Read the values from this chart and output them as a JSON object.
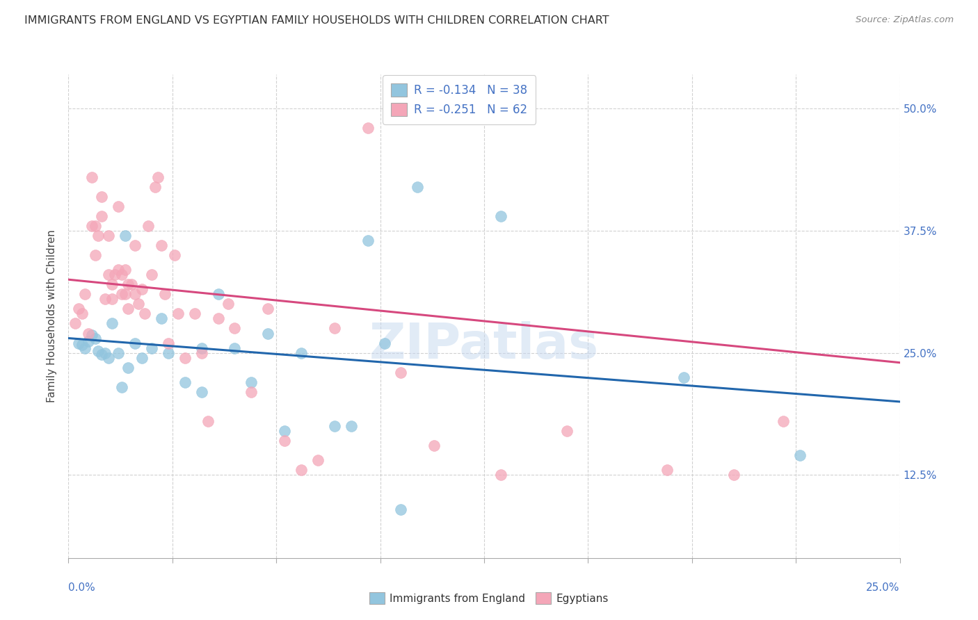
{
  "title": "IMMIGRANTS FROM ENGLAND VS EGYPTIAN FAMILY HOUSEHOLDS WITH CHILDREN CORRELATION CHART",
  "source": "Source: ZipAtlas.com",
  "ylabel": "Family Households with Children",
  "ytick_vals": [
    0.125,
    0.25,
    0.375,
    0.5
  ],
  "ytick_labels": [
    "12.5%",
    "25.0%",
    "37.5%",
    "50.0%"
  ],
  "xlim": [
    0.0,
    0.25
  ],
  "ylim": [
    0.04,
    0.535
  ],
  "label1": "Immigrants from England",
  "label2": "Egyptians",
  "blue_color": "#92c5de",
  "pink_color": "#f4a6b8",
  "line_blue": "#2166ac",
  "line_pink": "#d6487e",
  "background": "#ffffff",
  "grid_color": "#cccccc",
  "watermark_color": "#c5d8ef",
  "blue_x": [
    0.003,
    0.004,
    0.005,
    0.006,
    0.007,
    0.008,
    0.009,
    0.01,
    0.011,
    0.012,
    0.013,
    0.015,
    0.016,
    0.017,
    0.018,
    0.02,
    0.022,
    0.025,
    0.028,
    0.03,
    0.035,
    0.04,
    0.04,
    0.045,
    0.05,
    0.055,
    0.06,
    0.065,
    0.07,
    0.08,
    0.085,
    0.09,
    0.095,
    0.1,
    0.105,
    0.13,
    0.185,
    0.22
  ],
  "blue_y": [
    0.26,
    0.258,
    0.255,
    0.262,
    0.268,
    0.265,
    0.252,
    0.248,
    0.25,
    0.245,
    0.28,
    0.25,
    0.215,
    0.37,
    0.235,
    0.26,
    0.245,
    0.255,
    0.285,
    0.25,
    0.22,
    0.255,
    0.21,
    0.31,
    0.255,
    0.22,
    0.27,
    0.17,
    0.25,
    0.175,
    0.175,
    0.365,
    0.26,
    0.09,
    0.42,
    0.39,
    0.225,
    0.145
  ],
  "pink_x": [
    0.002,
    0.003,
    0.004,
    0.005,
    0.006,
    0.007,
    0.007,
    0.008,
    0.008,
    0.009,
    0.01,
    0.01,
    0.011,
    0.012,
    0.012,
    0.013,
    0.013,
    0.014,
    0.015,
    0.015,
    0.016,
    0.016,
    0.017,
    0.017,
    0.018,
    0.018,
    0.019,
    0.02,
    0.02,
    0.021,
    0.022,
    0.023,
    0.024,
    0.025,
    0.026,
    0.027,
    0.028,
    0.029,
    0.03,
    0.032,
    0.033,
    0.035,
    0.038,
    0.04,
    0.042,
    0.045,
    0.048,
    0.05,
    0.055,
    0.06,
    0.065,
    0.07,
    0.075,
    0.08,
    0.09,
    0.1,
    0.11,
    0.13,
    0.15,
    0.18,
    0.2,
    0.215
  ],
  "pink_y": [
    0.28,
    0.295,
    0.29,
    0.31,
    0.27,
    0.43,
    0.38,
    0.38,
    0.35,
    0.37,
    0.39,
    0.41,
    0.305,
    0.33,
    0.37,
    0.32,
    0.305,
    0.33,
    0.4,
    0.335,
    0.31,
    0.33,
    0.31,
    0.335,
    0.295,
    0.32,
    0.32,
    0.31,
    0.36,
    0.3,
    0.315,
    0.29,
    0.38,
    0.33,
    0.42,
    0.43,
    0.36,
    0.31,
    0.26,
    0.35,
    0.29,
    0.245,
    0.29,
    0.25,
    0.18,
    0.285,
    0.3,
    0.275,
    0.21,
    0.295,
    0.16,
    0.13,
    0.14,
    0.275,
    0.48,
    0.23,
    0.155,
    0.125,
    0.17,
    0.13,
    0.125,
    0.18
  ],
  "blue_line_x0": 0.0,
  "blue_line_x1": 0.25,
  "blue_line_y0": 0.265,
  "blue_line_y1": 0.2,
  "pink_line_x0": 0.0,
  "pink_line_x1": 0.25,
  "pink_line_y0": 0.325,
  "pink_line_y1": 0.24
}
